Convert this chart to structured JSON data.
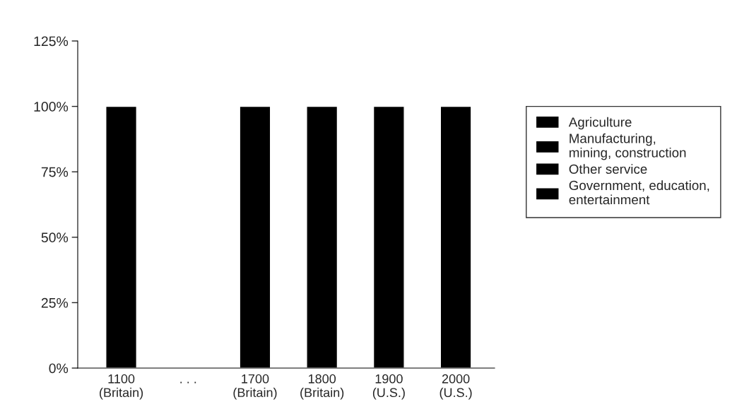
{
  "chart_data": {
    "type": "bar",
    "categories": [
      "1100\n(Britain)",
      ". . .",
      "1700\n(Britain)",
      "1800\n(Britain)",
      "1900\n(U.S.)",
      "2000\n(U.S.)"
    ],
    "series": [
      {
        "color": "#000000",
        "values": [
          100,
          null,
          100,
          100,
          100,
          100
        ]
      },
      {
        "name": "Agriculture",
        "color": "#000000",
        "values": [
          null,
          null,
          null,
          null,
          null,
          null
        ]
      },
      {
        "name": "Manufacturing,\nmining, construction",
        "color": "#000000",
        "values": [
          null,
          null,
          null,
          null,
          null,
          null
        ]
      },
      {
        "name": "Other service",
        "color": "#000000",
        "values": [
          null,
          null,
          null,
          null,
          null,
          null
        ]
      },
      {
        "name": "Government, education,\nentertainment",
        "color": "#000000",
        "values": [
          null,
          null,
          null,
          null,
          null,
          null
        ]
      }
    ],
    "ylim": [
      0,
      125
    ],
    "yticks": [
      {
        "value": 0,
        "label": "0%"
      },
      {
        "value": 25,
        "label": "25%"
      },
      {
        "value": 50,
        "label": "50%"
      },
      {
        "value": 75,
        "label": "75%"
      },
      {
        "value": 100,
        "label": "100%"
      },
      {
        "value": 125,
        "label": "125%"
      }
    ],
    "legend": "right"
  }
}
